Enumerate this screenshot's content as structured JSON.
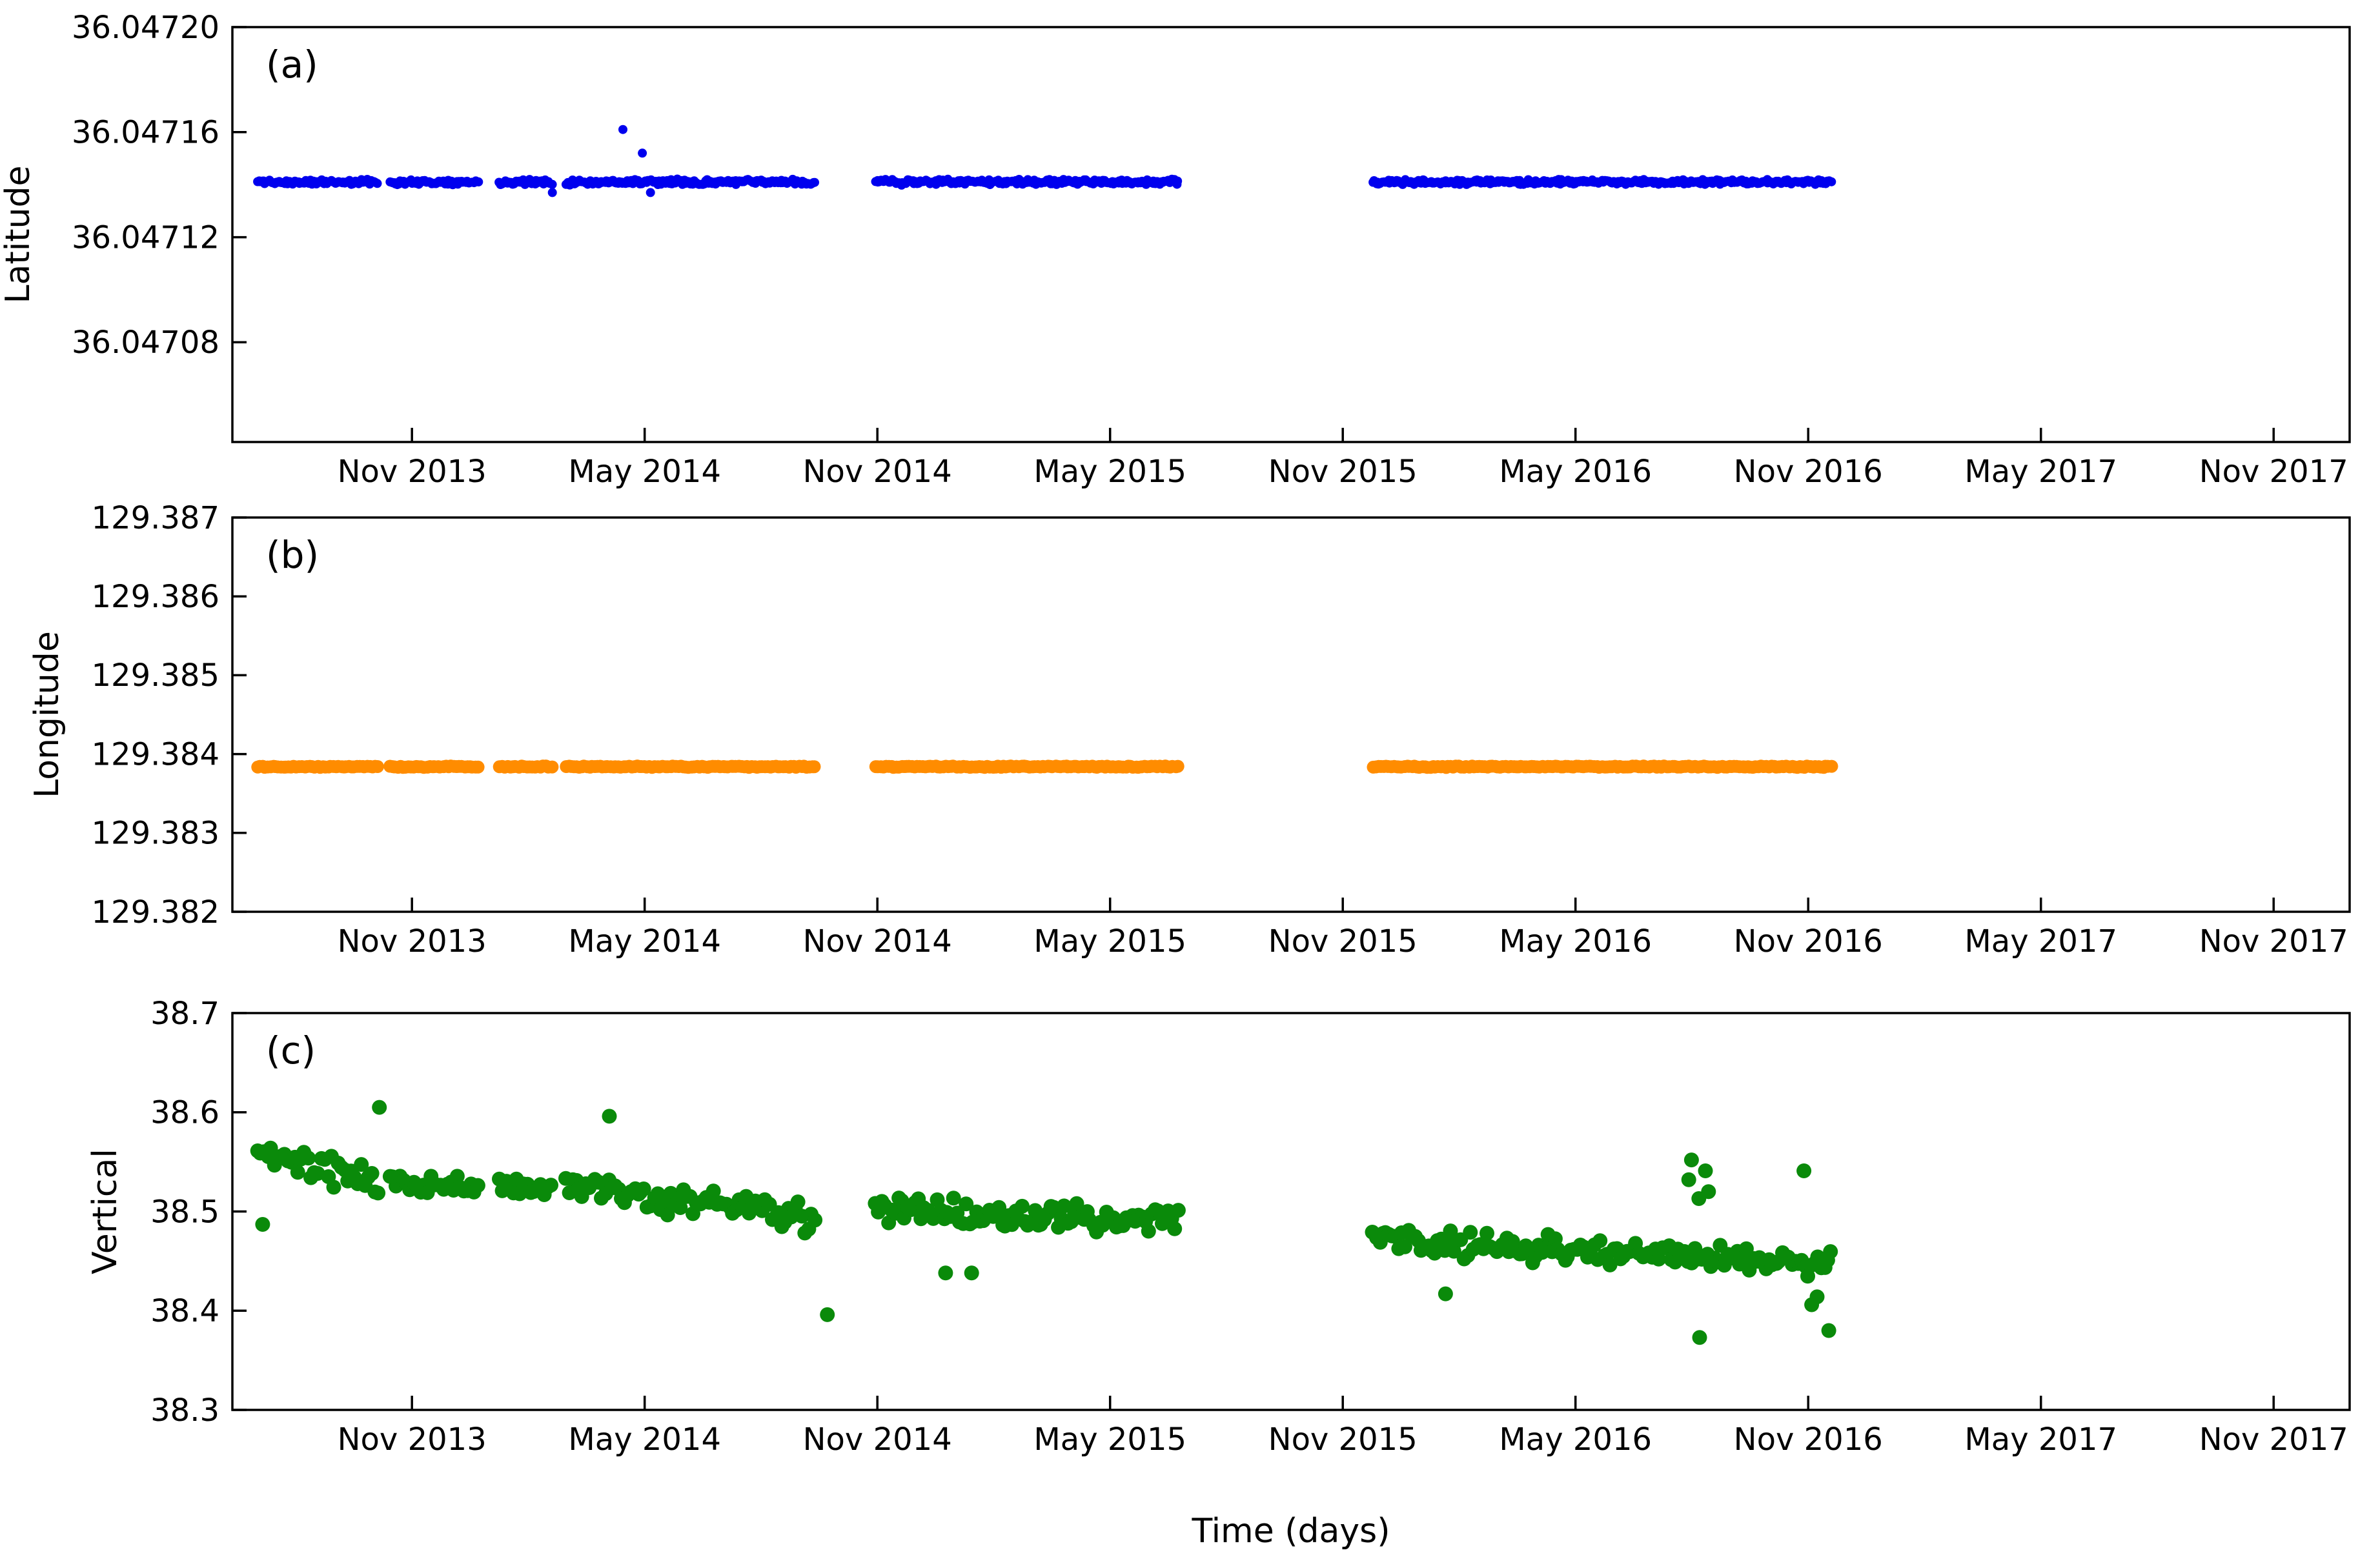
{
  "figure": {
    "xlabel": "Time (days)",
    "x_axis": {
      "months_total": 54.59,
      "ticks": [
        {
          "label": "Nov 2013",
          "month": 4.63
        },
        {
          "label": "May 2014",
          "month": 10.63
        },
        {
          "label": "Nov 2014",
          "month": 16.63
        },
        {
          "label": "May 2015",
          "month": 22.63
        },
        {
          "label": "Nov 2015",
          "month": 28.63
        },
        {
          "label": "May 2016",
          "month": 34.63
        },
        {
          "label": "Nov 2016",
          "month": 40.63
        },
        {
          "label": "May 2017",
          "month": 46.63
        },
        {
          "label": "Nov 2017",
          "month": 52.63
        }
      ]
    }
  },
  "chart_data": [
    {
      "type": "scatter",
      "panel": "a",
      "panel_label": "(a)",
      "ylabel": "Latitude",
      "color": "#0000ee",
      "marker_radius": 7,
      "ylim": [
        36.047042,
        36.0472
      ],
      "yticks": [
        {
          "value": 36.0472,
          "label": "36.04720"
        },
        {
          "value": 36.04716,
          "label": "36.04716"
        },
        {
          "value": 36.04712,
          "label": "36.04712"
        },
        {
          "value": 36.04708,
          "label": "36.04708"
        }
      ],
      "seed": 11,
      "segments": [
        {
          "t0": 0.65,
          "t1": 3.75,
          "v0": 36.047141,
          "v1": 36.047141,
          "noise": 1.1e-06,
          "n": 81
        },
        {
          "t0": 4.05,
          "t1": 6.33,
          "v0": 36.047141,
          "v1": 36.047141,
          "noise": 1.1e-06,
          "n": 59
        },
        {
          "t0": 6.88,
          "t1": 8.23,
          "v0": 36.047141,
          "v1": 36.047141,
          "noise": 1.1e-06,
          "n": 35
        },
        {
          "t0": 8.6,
          "t1": 15.01,
          "v0": 36.047141,
          "v1": 36.047141,
          "noise": 1.2e-06,
          "n": 167
        },
        {
          "t0": 16.58,
          "t1": 24.38,
          "v0": 36.047141,
          "v1": 36.047141,
          "noise": 1.2e-06,
          "n": 203
        },
        {
          "t0": 29.41,
          "t1": 41.22,
          "v0": 36.047141,
          "v1": 36.047141,
          "noise": 1.1e-06,
          "n": 307
        }
      ],
      "outliers": [
        {
          "t": 10.07,
          "v": 36.047161
        },
        {
          "t": 10.57,
          "v": 36.047152
        },
        {
          "t": 8.25,
          "v": 36.047137
        },
        {
          "t": 10.78,
          "v": 36.047137
        }
      ]
    },
    {
      "type": "scatter",
      "panel": "b",
      "panel_label": "(b)",
      "ylabel": "Longitude",
      "color": "#ff8c00",
      "marker_radius": 10,
      "ylim": [
        129.382,
        129.387
      ],
      "yticks": [
        {
          "value": 129.387,
          "label": "129.387"
        },
        {
          "value": 129.386,
          "label": "129.386"
        },
        {
          "value": 129.385,
          "label": "129.385"
        },
        {
          "value": 129.384,
          "label": "129.384"
        },
        {
          "value": 129.383,
          "label": "129.383"
        },
        {
          "value": 129.382,
          "label": "129.382"
        }
      ],
      "seed": 22,
      "segments": [
        {
          "t0": 0.65,
          "t1": 3.75,
          "v0": 129.38384,
          "v1": 129.38384,
          "noise": 1e-05,
          "n": 47
        },
        {
          "t0": 4.05,
          "t1": 6.33,
          "v0": 129.38384,
          "v1": 129.38384,
          "noise": 1e-05,
          "n": 34
        },
        {
          "t0": 6.88,
          "t1": 8.23,
          "v0": 129.38384,
          "v1": 129.38384,
          "noise": 1e-05,
          "n": 20
        },
        {
          "t0": 8.6,
          "t1": 15.01,
          "v0": 129.38384,
          "v1": 129.38384,
          "noise": 1e-05,
          "n": 96
        },
        {
          "t0": 16.58,
          "t1": 24.38,
          "v0": 129.38384,
          "v1": 129.38384,
          "noise": 1e-05,
          "n": 117
        },
        {
          "t0": 29.41,
          "t1": 41.22,
          "v0": 129.38384,
          "v1": 129.38384,
          "noise": 1e-05,
          "n": 177
        }
      ],
      "outliers": []
    },
    {
      "type": "scatter",
      "panel": "c",
      "panel_label": "(c)",
      "ylabel": "Vertical",
      "color": "#0a8a0a",
      "marker_radius": 11.5,
      "ylim": [
        38.3,
        38.7
      ],
      "yticks": [
        {
          "value": 38.7,
          "label": "38.7"
        },
        {
          "value": 38.6,
          "label": "38.6"
        },
        {
          "value": 38.5,
          "label": "38.5"
        },
        {
          "value": 38.4,
          "label": "38.4"
        },
        {
          "value": 38.3,
          "label": "38.3"
        }
      ],
      "seed": 33,
      "segments": [
        {
          "t0": 0.65,
          "t1": 3.75,
          "v0": 38.555,
          "v1": 38.532,
          "noise": 0.017,
          "n": 37
        },
        {
          "t0": 4.05,
          "t1": 6.33,
          "v0": 38.533,
          "v1": 38.522,
          "noise": 0.016,
          "n": 27
        },
        {
          "t0": 6.88,
          "t1": 8.23,
          "v0": 38.527,
          "v1": 38.52,
          "noise": 0.016,
          "n": 16
        },
        {
          "t0": 8.6,
          "t1": 15.01,
          "v0": 38.525,
          "v1": 38.492,
          "noise": 0.017,
          "n": 77
        },
        {
          "t0": 16.58,
          "t1": 24.38,
          "v0": 38.502,
          "v1": 38.49,
          "noise": 0.016,
          "n": 94
        },
        {
          "t0": 29.41,
          "t1": 41.22,
          "v0": 38.472,
          "v1": 38.446,
          "noise": 0.015,
          "n": 142
        }
      ],
      "outliers": [
        {
          "t": 0.78,
          "v": 38.487
        },
        {
          "t": 3.79,
          "v": 38.605
        },
        {
          "t": 9.72,
          "v": 38.596
        },
        {
          "t": 15.34,
          "v": 38.396
        },
        {
          "t": 18.39,
          "v": 38.438
        },
        {
          "t": 19.06,
          "v": 38.438
        },
        {
          "t": 31.28,
          "v": 38.417
        },
        {
          "t": 37.55,
          "v": 38.532
        },
        {
          "t": 37.62,
          "v": 38.552
        },
        {
          "t": 37.81,
          "v": 38.513
        },
        {
          "t": 37.98,
          "v": 38.541
        },
        {
          "t": 38.06,
          "v": 38.52
        },
        {
          "t": 37.83,
          "v": 38.373
        },
        {
          "t": 40.52,
          "v": 38.541
        },
        {
          "t": 40.72,
          "v": 38.406
        },
        {
          "t": 40.86,
          "v": 38.414
        },
        {
          "t": 41.16,
          "v": 38.38
        }
      ]
    }
  ]
}
